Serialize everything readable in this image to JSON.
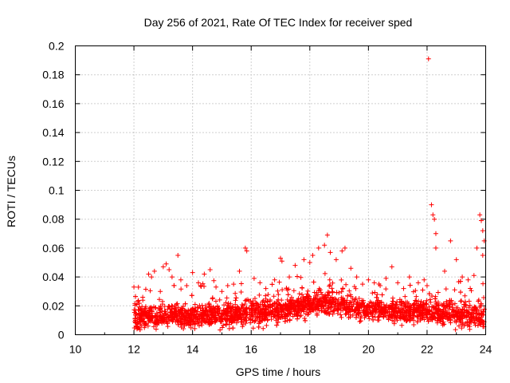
{
  "chart_data": {
    "type": "scatter",
    "title": "Day 256 of 2021, Rate Of TEC Index for receiver sped",
    "xlabel": "GPS time / hours",
    "ylabel": "ROTI / TECUs",
    "xlim": [
      10,
      24
    ],
    "ylim": [
      0,
      0.2
    ],
    "x_ticks": [
      "10",
      "12",
      "14",
      "16",
      "18",
      "20",
      "22",
      "24"
    ],
    "y_ticks": [
      "0",
      "0.02",
      "0.04",
      "0.06",
      "0.08",
      "0.1",
      "0.12",
      "0.14",
      "0.16",
      "0.18",
      "0.2"
    ],
    "grid": true,
    "marker": "+",
    "color": "#ff0000",
    "series": [
      {
        "name": "ROTI",
        "points": [
          [
            12.0,
            0.033
          ],
          [
            12.1,
            0.021
          ],
          [
            12.3,
            0.026
          ],
          [
            12.5,
            0.042
          ],
          [
            12.6,
            0.04
          ],
          [
            12.7,
            0.044
          ],
          [
            12.9,
            0.03
          ],
          [
            13.0,
            0.047
          ],
          [
            13.1,
            0.049
          ],
          [
            13.2,
            0.045
          ],
          [
            13.3,
            0.04
          ],
          [
            13.5,
            0.055
          ],
          [
            13.6,
            0.038
          ],
          [
            13.8,
            0.034
          ],
          [
            14.0,
            0.043
          ],
          [
            14.2,
            0.036
          ],
          [
            14.4,
            0.042
          ],
          [
            14.6,
            0.045
          ],
          [
            14.8,
            0.033
          ],
          [
            15.0,
            0.03
          ],
          [
            15.2,
            0.034
          ],
          [
            15.4,
            0.035
          ],
          [
            15.6,
            0.044
          ],
          [
            15.8,
            0.06
          ],
          [
            15.85,
            0.058
          ],
          [
            16.1,
            0.039
          ],
          [
            16.3,
            0.036
          ],
          [
            16.5,
            0.032
          ],
          [
            16.8,
            0.038
          ],
          [
            17.0,
            0.053
          ],
          [
            17.05,
            0.051
          ],
          [
            17.3,
            0.04
          ],
          [
            17.5,
            0.048
          ],
          [
            17.8,
            0.052
          ],
          [
            18.0,
            0.05
          ],
          [
            18.1,
            0.055
          ],
          [
            18.3,
            0.06
          ],
          [
            18.5,
            0.062
          ],
          [
            18.6,
            0.069
          ],
          [
            18.7,
            0.057
          ],
          [
            18.9,
            0.052
          ],
          [
            19.1,
            0.058
          ],
          [
            19.2,
            0.06
          ],
          [
            19.4,
            0.046
          ],
          [
            19.6,
            0.04
          ],
          [
            19.8,
            0.035
          ],
          [
            20.0,
            0.038
          ],
          [
            20.2,
            0.036
          ],
          [
            20.4,
            0.034
          ],
          [
            20.6,
            0.039
          ],
          [
            20.8,
            0.047
          ],
          [
            21.0,
            0.036
          ],
          [
            21.2,
            0.032
          ],
          [
            21.4,
            0.04
          ],
          [
            21.7,
            0.036
          ],
          [
            21.9,
            0.038
          ],
          [
            22.0,
            0.034
          ],
          [
            22.05,
            0.191
          ],
          [
            22.15,
            0.09
          ],
          [
            22.2,
            0.083
          ],
          [
            22.25,
            0.08
          ],
          [
            22.3,
            0.07
          ],
          [
            22.3,
            0.06
          ],
          [
            22.6,
            0.044
          ],
          [
            22.8,
            0.065
          ],
          [
            23.0,
            0.052
          ],
          [
            23.2,
            0.04
          ],
          [
            23.4,
            0.038
          ],
          [
            23.6,
            0.041
          ],
          [
            23.8,
            0.083
          ],
          [
            23.85,
            0.079
          ],
          [
            23.9,
            0.072
          ],
          [
            23.95,
            0.065
          ],
          [
            23.7,
            0.06
          ],
          [
            23.9,
            0.055
          ]
        ]
      }
    ],
    "dense_band": {
      "x_start": 12.0,
      "x_end": 23.95,
      "baseline": [
        [
          12.0,
          0.012
        ],
        [
          13.0,
          0.013
        ],
        [
          14.0,
          0.013
        ],
        [
          15.0,
          0.014
        ],
        [
          16.0,
          0.015
        ],
        [
          17.0,
          0.017
        ],
        [
          18.0,
          0.021
        ],
        [
          18.5,
          0.022
        ],
        [
          19.0,
          0.021
        ],
        [
          20.0,
          0.018
        ],
        [
          21.0,
          0.016
        ],
        [
          22.0,
          0.016
        ],
        [
          23.0,
          0.014
        ],
        [
          24.0,
          0.013
        ]
      ],
      "spread": 0.009,
      "y_floor": 0.003
    }
  }
}
